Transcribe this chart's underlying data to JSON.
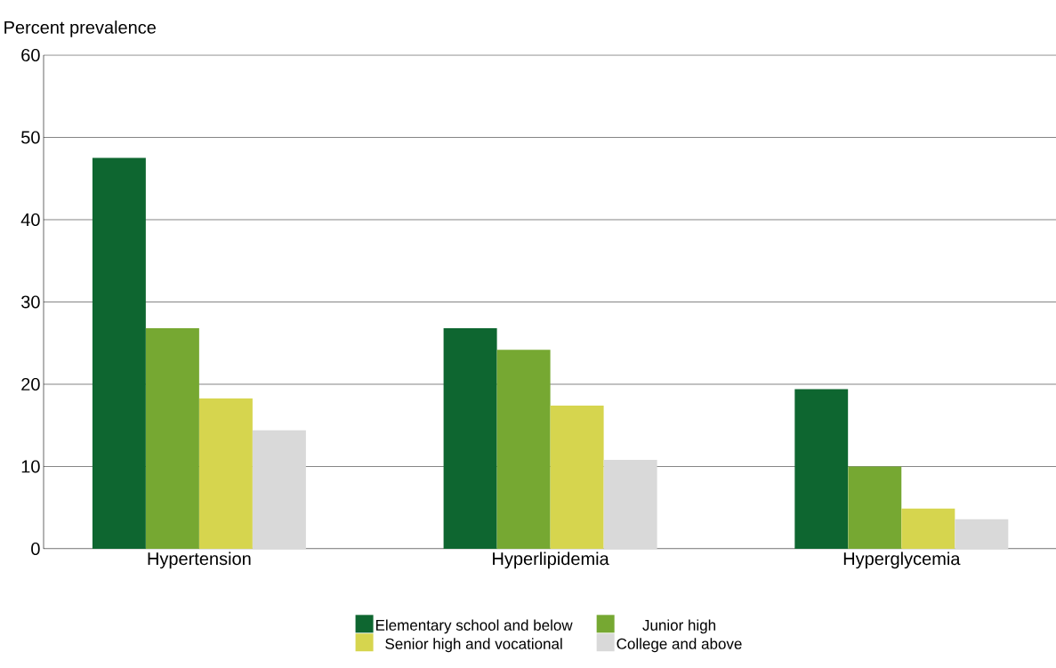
{
  "chart_data": {
    "type": "bar",
    "ylabel": "Percent prevalence",
    "categories": [
      "Hypertension",
      "Hyperlipidemia",
      "Hyperglycemia"
    ],
    "series": [
      {
        "name": "Elementary school and below",
        "color": "#0e6630",
        "values": [
          47.5,
          26.8,
          19.4
        ]
      },
      {
        "name": "Junior high",
        "color": "#76a832",
        "values": [
          26.8,
          24.2,
          10.0
        ]
      },
      {
        "name": "Senior high and vocational",
        "color": "#d6d54e",
        "values": [
          18.3,
          17.4,
          4.9
        ]
      },
      {
        "name": "College and above",
        "color": "#d9d9d9",
        "values": [
          14.4,
          10.8,
          3.6
        ]
      }
    ],
    "ylim": [
      0,
      60
    ],
    "yticks": [
      0,
      10,
      20,
      30,
      40,
      50,
      60
    ],
    "grid": "y",
    "legend": "bottom"
  }
}
